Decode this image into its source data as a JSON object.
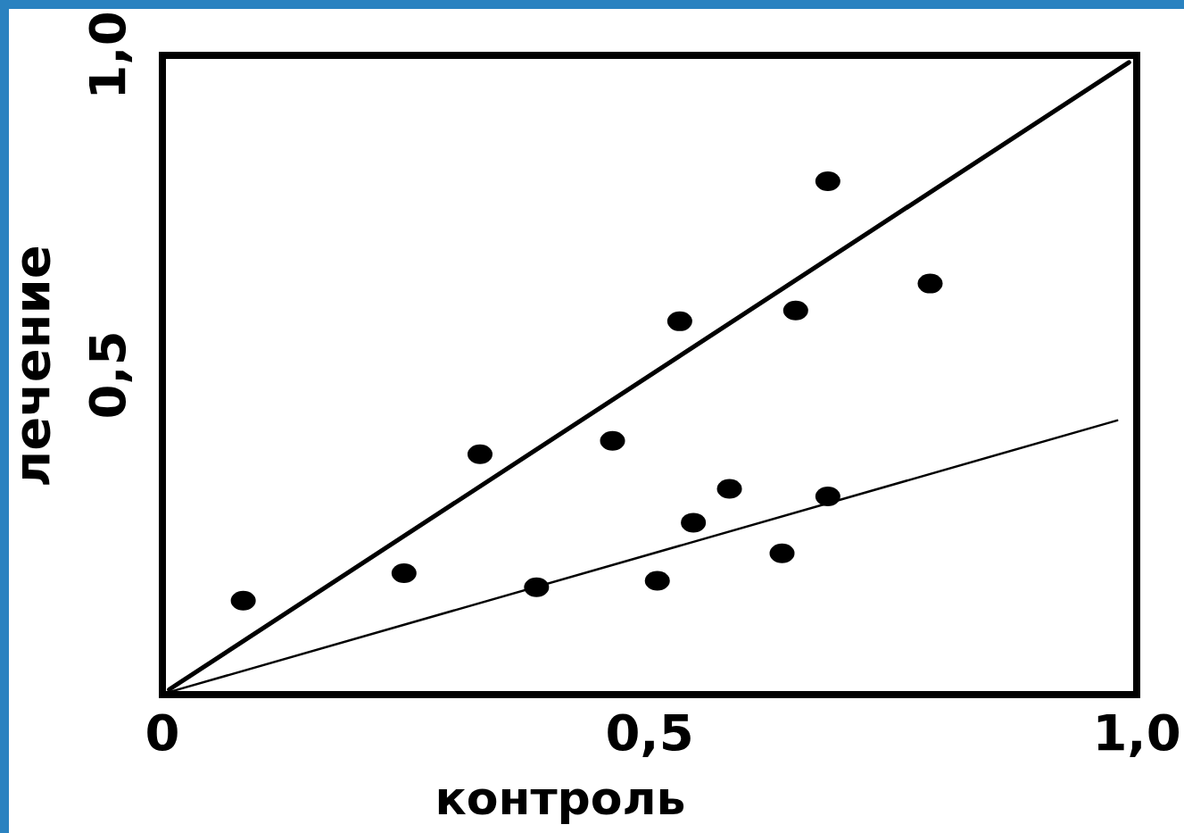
{
  "chart_data": {
    "type": "scatter",
    "xlabel": "контроль",
    "ylabel": "лечение",
    "xlim": [
      0,
      1
    ],
    "ylim": [
      0,
      1
    ],
    "xticks": [
      {
        "value": 0,
        "label": "0"
      },
      {
        "value": 0.5,
        "label": "0,5"
      },
      {
        "value": 1,
        "label": "1,0"
      }
    ],
    "yticks": [
      {
        "value": 0.5,
        "label": "0,5"
      },
      {
        "value": 1,
        "label": "1,0"
      }
    ],
    "grid": false,
    "marker": "circle",
    "series": [
      {
        "type": "scatter",
        "color": "#000000",
        "x": [
          0.083,
          0.248,
          0.326,
          0.384,
          0.462,
          0.508,
          0.531,
          0.545,
          0.582,
          0.636,
          0.65,
          0.683,
          0.683,
          0.788
        ],
        "values": [
          0.147,
          0.19,
          0.376,
          0.168,
          0.397,
          0.178,
          0.584,
          0.269,
          0.322,
          0.221,
          0.601,
          0.803,
          0.31,
          0.643
        ]
      },
      {
        "type": "line",
        "color": "#000000",
        "line_style": "solid",
        "marker": "none",
        "x": [
          0.007,
          0.992
        ],
        "values": [
          0.008,
          0.989
        ]
      },
      {
        "type": "line",
        "color": "#000000",
        "line_style": "solid",
        "marker": "none",
        "x": [
          0.007,
          0.98
        ],
        "values": [
          0.004,
          0.429
        ]
      }
    ]
  }
}
